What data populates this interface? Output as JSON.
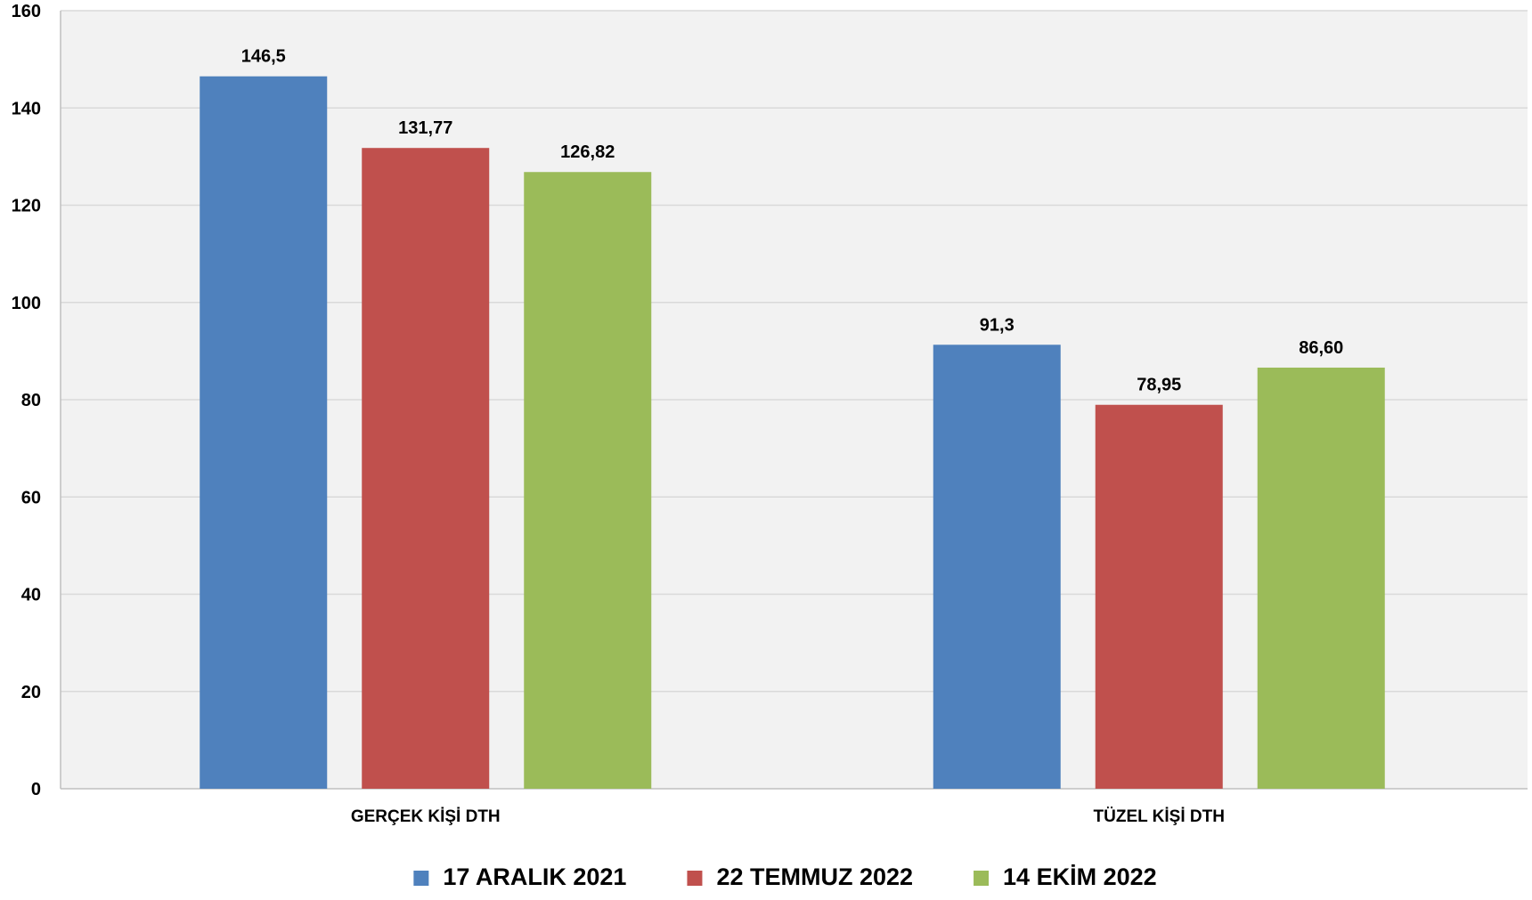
{
  "chart_data": {
    "type": "bar",
    "categories": [
      "GERÇEK KİŞİ DTH",
      "TÜZEL KİŞİ DTH"
    ],
    "series": [
      {
        "name": "17 ARALIK 2021",
        "values": [
          146.5,
          91.3
        ],
        "labels": [
          "146,5",
          "91,3"
        ],
        "color": "#4F81BD"
      },
      {
        "name": "22 TEMMUZ 2022",
        "values": [
          131.77,
          78.95
        ],
        "labels": [
          "131,77",
          "78,95"
        ],
        "color": "#C0504D"
      },
      {
        "name": "14 EKİM 2022",
        "values": [
          126.82,
          86.6
        ],
        "labels": [
          "126,82",
          "86,60"
        ],
        "color": "#9BBB59"
      }
    ],
    "ylim": [
      0,
      160
    ],
    "yticks": [
      0,
      20,
      40,
      60,
      80,
      100,
      120,
      140,
      160
    ],
    "grid": true,
    "legend": "bottom",
    "plot_background": "#F2F2F2",
    "gridline_color": "#D9D9D9"
  }
}
